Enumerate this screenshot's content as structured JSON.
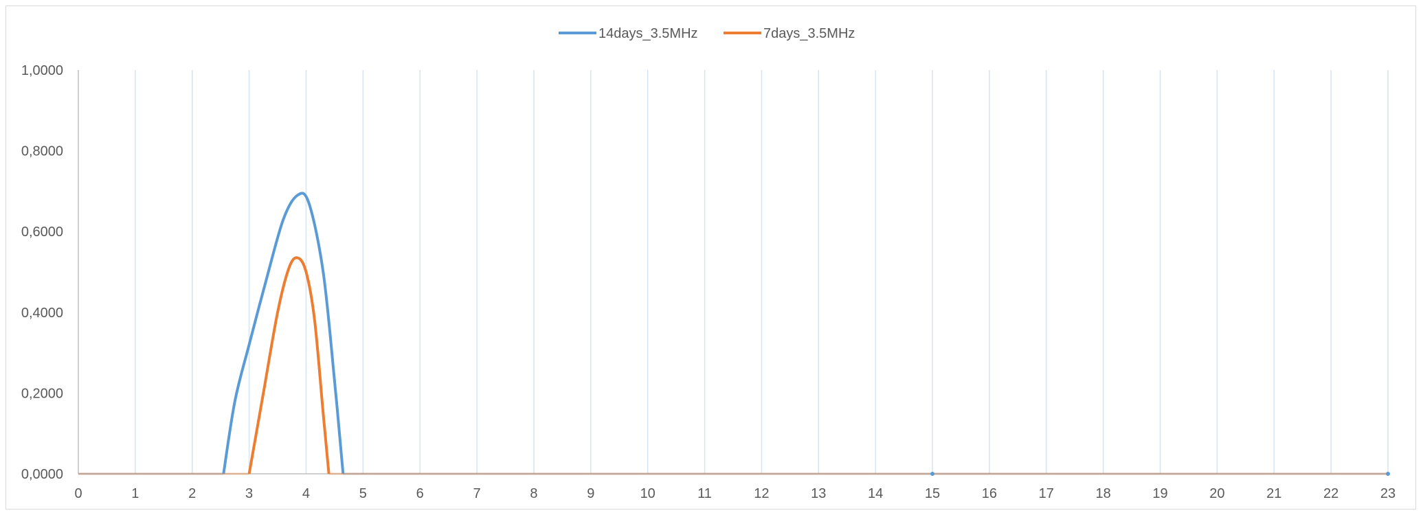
{
  "chart_data": {
    "type": "line",
    "title": "",
    "xlabel": "",
    "ylabel": "",
    "x": [
      0,
      1,
      2,
      3,
      4,
      5,
      6,
      7,
      8,
      9,
      10,
      11,
      12,
      13,
      14,
      15,
      16,
      17,
      18,
      19,
      20,
      21,
      22,
      23
    ],
    "x_tick_labels": [
      "0",
      "1",
      "2",
      "3",
      "4",
      "5",
      "6",
      "7",
      "8",
      "9",
      "10",
      "11",
      "12",
      "13",
      "14",
      "15",
      "16",
      "17",
      "18",
      "19",
      "20",
      "21",
      "22",
      "23"
    ],
    "xlim": [
      0,
      23
    ],
    "ylim": [
      0,
      1
    ],
    "y_ticks": [
      0,
      0.2,
      0.4,
      0.6,
      0.8,
      1.0
    ],
    "y_tick_labels": [
      "0,0000",
      "0,2000",
      "0,4000",
      "0,6000",
      "0,8000",
      "1,0000"
    ],
    "grid": "vertical",
    "legend_position": "top-center",
    "series": [
      {
        "name": "14days_3.5MHz",
        "color": "#5b9bd5",
        "points": [
          [
            2.55,
            0
          ],
          [
            2.75,
            0.18
          ],
          [
            3.0,
            0.32
          ],
          [
            3.3,
            0.48
          ],
          [
            3.6,
            0.63
          ],
          [
            3.85,
            0.69
          ],
          [
            4.05,
            0.67
          ],
          [
            4.3,
            0.5
          ],
          [
            4.5,
            0.23
          ],
          [
            4.65,
            0
          ]
        ]
      },
      {
        "name": "7days_3.5MHz",
        "color": "#ed7d31",
        "points": [
          [
            3.0,
            0
          ],
          [
            3.25,
            0.2
          ],
          [
            3.5,
            0.4
          ],
          [
            3.7,
            0.51
          ],
          [
            3.85,
            0.535
          ],
          [
            4.0,
            0.5
          ],
          [
            4.15,
            0.38
          ],
          [
            4.3,
            0.15
          ],
          [
            4.4,
            0
          ]
        ]
      }
    ]
  }
}
